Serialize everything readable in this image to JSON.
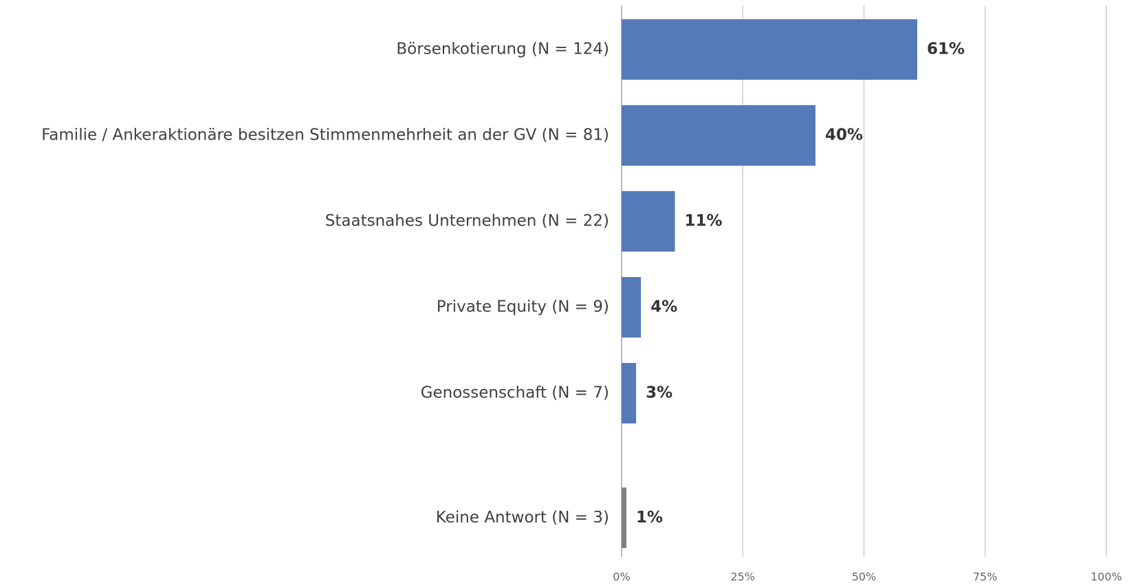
{
  "chart_data": {
    "type": "bar",
    "orientation": "horizontal",
    "categories": [
      "Börsenkotierung (N = 124)",
      "Familie / Ankeraktionäre besitzen Stimmenmehrheit an der GV (N = 81)",
      "Staatsnahes Unternehmen (N = 22)",
      "Private Equity (N = 9)",
      "Genossenschaft (N = 7)",
      "Keine Antwort (N = 3)"
    ],
    "values": [
      61,
      40,
      11,
      4,
      3,
      1
    ],
    "value_labels": [
      "61%",
      "40%",
      "11%",
      "4%",
      "3%",
      "1%"
    ],
    "colors": [
      "#557ab8",
      "#557ab8",
      "#557ab8",
      "#557ab8",
      "#557ab8",
      "#808080"
    ],
    "xlim": [
      0,
      100
    ],
    "xticks": [
      {
        "value": 0,
        "label": "0%"
      },
      {
        "value": 25,
        "label": "25%"
      },
      {
        "value": 50,
        "label": "50%"
      },
      {
        "value": 75,
        "label": "75%"
      },
      {
        "value": 100,
        "label": "100%"
      }
    ],
    "grid": true
  }
}
